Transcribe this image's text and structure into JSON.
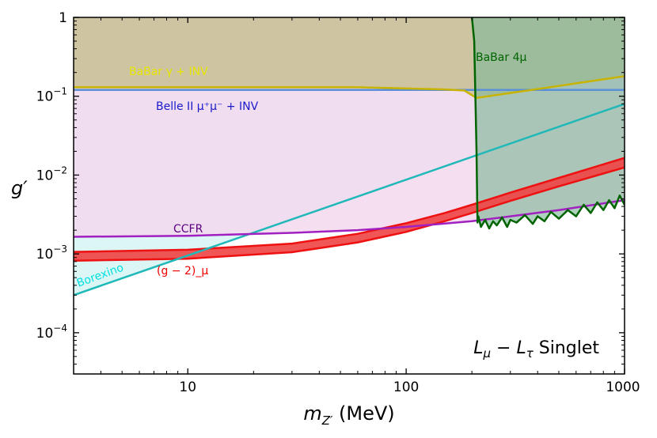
{
  "chart_data": {
    "type": "area",
    "xscale": "log",
    "yscale": "log",
    "xlim": [
      3,
      1000
    ],
    "ylim": [
      3e-05,
      1
    ],
    "xlabel": "m_{Z'} (MeV)",
    "ylabel": "g'",
    "x_ticks": [
      {
        "value": 10,
        "label": "10"
      },
      {
        "value": 100,
        "label": "100"
      },
      {
        "value": 1000,
        "label": "1000"
      }
    ],
    "y_ticks": [
      {
        "value": 0.0001,
        "label": "10^-4"
      },
      {
        "value": 0.001,
        "label": "10^-3"
      },
      {
        "value": 0.01,
        "label": "10^-2"
      },
      {
        "value": 0.1,
        "label": "10^-1"
      },
      {
        "value": 1,
        "label": "1"
      }
    ],
    "model_label": "L_μ − L_τ Singlet",
    "series": [
      {
        "name": "Belle II μ⁺μ⁻ + INV",
        "kind": "excluded-above",
        "line_color": "#5b8fd6",
        "fill_color": "#d9d0ee",
        "x": [
          3,
          1000
        ],
        "y": [
          0.12,
          0.12
        ]
      },
      {
        "name": "BaBar γ + INV",
        "kind": "excluded-above",
        "line_color": "#c8b400",
        "fill_color": "#c7bd82",
        "x": [
          3,
          60,
          150,
          185,
          210,
          300,
          500,
          1000
        ],
        "y": [
          0.13,
          0.13,
          0.122,
          0.118,
          0.095,
          0.11,
          0.135,
          0.18
        ]
      },
      {
        "name": "BaBar 4μ",
        "kind": "excluded-above",
        "line_color": "#006400",
        "fill_color": "#82b89a",
        "x": [
          200,
          205,
          210,
          212,
          214,
          220,
          230,
          240,
          250,
          260,
          275,
          290,
          300,
          320,
          350,
          380,
          400,
          430,
          460,
          500,
          550,
          600,
          650,
          700,
          750,
          800,
          850,
          900,
          950,
          1000
        ],
        "y": [
          1,
          0.5,
          0.02,
          0.0025,
          0.003,
          0.0022,
          0.0027,
          0.0021,
          0.0026,
          0.0023,
          0.0029,
          0.0022,
          0.0027,
          0.0025,
          0.0031,
          0.0024,
          0.003,
          0.0026,
          0.0034,
          0.0028,
          0.0036,
          0.003,
          0.0042,
          0.0033,
          0.0045,
          0.0036,
          0.0048,
          0.0038,
          0.0055,
          0.0042
        ]
      },
      {
        "name": "CCFR",
        "kind": "excluded-above",
        "line_color": "#a020c0",
        "fill_color": "#f5d8ee",
        "x": [
          3,
          10,
          30,
          60,
          100,
          200,
          300,
          500,
          1000
        ],
        "y": [
          0.00165,
          0.0017,
          0.00185,
          0.002,
          0.0022,
          0.0026,
          0.003,
          0.0036,
          0.0048
        ]
      },
      {
        "name": "Borexino",
        "kind": "excluded-above",
        "line_color": "#20b8b8",
        "fill_color": "#d6f4f4",
        "x": [
          3,
          1000
        ],
        "y": [
          0.0003,
          0.08
        ]
      },
      {
        "name": "(g − 2)_μ",
        "kind": "band",
        "line_color": "#ee1111",
        "fill_color": "#ee4444",
        "x": [
          3,
          10,
          30,
          60,
          100,
          150,
          200,
          300,
          500,
          1000
        ],
        "y_low": [
          0.00082,
          0.00087,
          0.00105,
          0.0014,
          0.0019,
          0.0026,
          0.0033,
          0.0047,
          0.0072,
          0.0125
        ],
        "y_high": [
          0.00106,
          0.00113,
          0.00135,
          0.0018,
          0.00245,
          0.0033,
          0.0042,
          0.006,
          0.0092,
          0.0165
        ]
      }
    ],
    "annotations": [
      {
        "text": "BaBar γ + INV",
        "color": "#e6e600"
      },
      {
        "text": "BaBar 4μ",
        "color": "#006400"
      },
      {
        "text": "Belle II μ⁺μ⁻ + INV",
        "color": "#1a1acc"
      },
      {
        "text": "CCFR",
        "color": "#5a0080"
      },
      {
        "text": "Borexino",
        "color": "#00e0e0"
      },
      {
        "text": "(g − 2)_μ",
        "color": "#ee0000"
      }
    ]
  }
}
